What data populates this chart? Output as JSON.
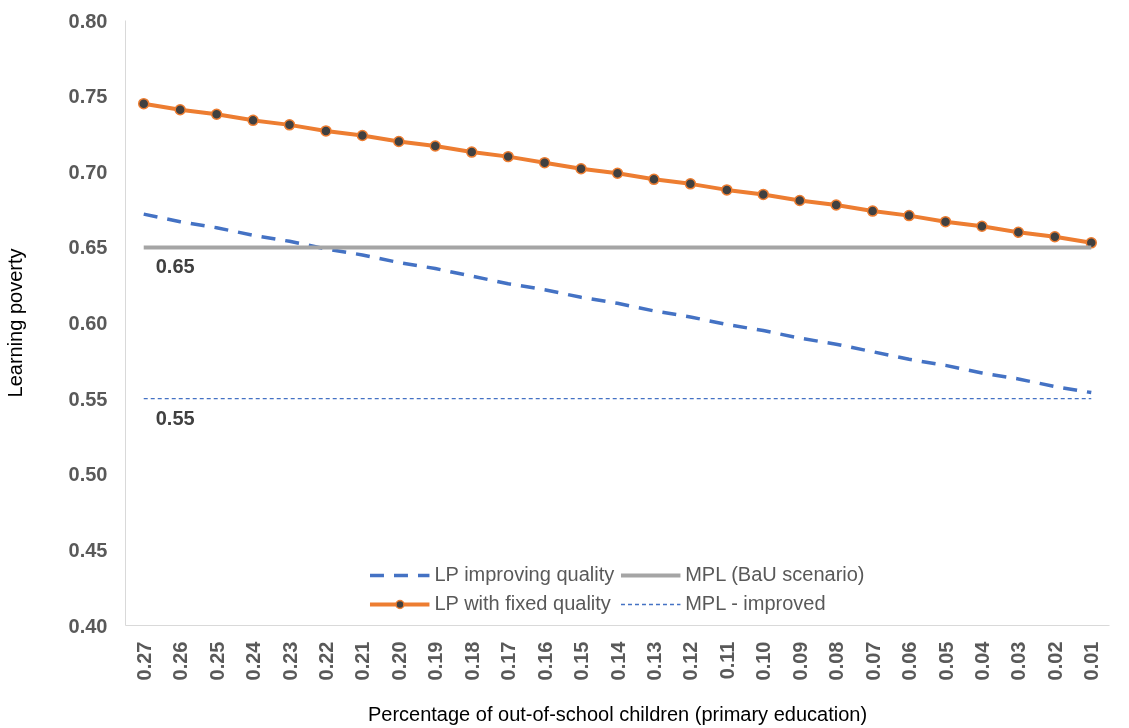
{
  "chart_data": {
    "type": "line",
    "xlabel": "Percentage of out-of-school children (primary education)",
    "ylabel": "Learning poverty",
    "categories": [
      "0.27",
      "0.26",
      "0.25",
      "0.24",
      "0.23",
      "0.22",
      "0.21",
      "0.20",
      "0.19",
      "0.18",
      "0.17",
      "0.16",
      "0.15",
      "0.14",
      "0.13",
      "0.12",
      "0.11",
      "0.10",
      "0.09",
      "0.08",
      "0.07",
      "0.06",
      "0.05",
      "0.04",
      "0.03",
      "0.02",
      "0.01"
    ],
    "ylim": [
      0.4,
      0.8
    ],
    "yticks": [
      "0.40",
      "0.45",
      "0.50",
      "0.55",
      "0.60",
      "0.65",
      "0.70",
      "0.75",
      "0.80"
    ],
    "grid": false,
    "legend": "bottom",
    "series": [
      {
        "name": "LP improving quality",
        "color": "#4472c4",
        "line_style": "dashed",
        "marker": "none",
        "values": [
          0.672,
          0.667,
          0.663,
          0.658,
          0.654,
          0.649,
          0.645,
          0.64,
          0.636,
          0.631,
          0.626,
          0.622,
          0.617,
          0.613,
          0.608,
          0.604,
          0.599,
          0.595,
          0.59,
          0.586,
          0.581,
          0.576,
          0.572,
          0.567,
          0.563,
          0.558,
          0.554
        ]
      },
      {
        "name": "LP with fixed quality",
        "color": "#ed7d31",
        "line_style": "solid",
        "marker": "circle",
        "values": [
          0.745,
          0.741,
          0.738,
          0.734,
          0.731,
          0.727,
          0.724,
          0.72,
          0.717,
          0.713,
          0.71,
          0.706,
          0.702,
          0.699,
          0.695,
          0.692,
          0.688,
          0.685,
          0.681,
          0.678,
          0.674,
          0.671,
          0.667,
          0.664,
          0.66,
          0.657,
          0.653
        ]
      },
      {
        "name": "MPL (BaU scenario)",
        "color": "#a5a5a5",
        "line_style": "solid",
        "marker": "none",
        "values": [
          0.65,
          0.65,
          0.65,
          0.65,
          0.65,
          0.65,
          0.65,
          0.65,
          0.65,
          0.65,
          0.65,
          0.65,
          0.65,
          0.65,
          0.65,
          0.65,
          0.65,
          0.65,
          0.65,
          0.65,
          0.65,
          0.65,
          0.65,
          0.65,
          0.65,
          0.65,
          0.65
        ],
        "value_labels": [
          "0.65",
          null,
          null,
          null,
          null,
          null,
          null,
          null,
          null,
          null,
          null,
          null,
          null,
          null,
          null,
          null,
          null,
          null,
          null,
          null,
          null,
          null,
          null,
          null,
          null,
          null,
          null
        ]
      },
      {
        "name": "MPL - improved",
        "color": "#4472c4",
        "line_style": "dotted",
        "marker": "none",
        "values": [
          0.55,
          0.55,
          0.55,
          0.55,
          0.55,
          0.55,
          0.55,
          0.55,
          0.55,
          0.55,
          0.55,
          0.55,
          0.55,
          0.55,
          0.55,
          0.55,
          0.55,
          0.55,
          0.55,
          0.55,
          0.55,
          0.55,
          0.55,
          0.55,
          0.55,
          0.55,
          0.55
        ],
        "value_labels": [
          "0.55",
          null,
          null,
          null,
          null,
          null,
          null,
          null,
          null,
          null,
          null,
          null,
          null,
          null,
          null,
          null,
          null,
          null,
          null,
          null,
          null,
          null,
          null,
          null,
          null,
          null,
          null
        ]
      }
    ]
  }
}
